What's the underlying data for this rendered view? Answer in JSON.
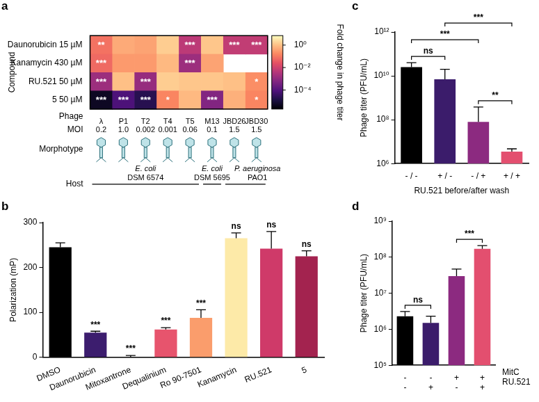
{
  "chart_data": [
    {
      "panel_label": "a",
      "type": "heatmap",
      "x_label": "Phage",
      "y_label": "Compound",
      "categories": [
        "λ",
        "P1",
        "T2",
        "T4",
        "T5",
        "M13",
        "JBD26",
        "JBD30"
      ],
      "rows": [
        "Daunorubicin 15 µM",
        "Kanamycin 430 µM",
        "RU.521 50 µM",
        "5 50 µM"
      ],
      "cells": [
        [
          0.08,
          0.5,
          0.4,
          1.5,
          0.005,
          1.2,
          0.006,
          0.006
        ],
        [
          0.06,
          0.3,
          0.3,
          0.8,
          0.0015,
          0.4,
          null,
          null
        ],
        [
          0.0015,
          1.0,
          0.0012,
          1.5,
          1.2,
          1.2,
          1.0,
          0.2
        ],
        [
          5e-06,
          8e-05,
          2e-05,
          0.15,
          0.8,
          0.0006,
          0.6,
          0.15
        ]
      ],
      "cell_labels": [
        [
          "**",
          null,
          null,
          null,
          "***",
          null,
          "***",
          "***"
        ],
        [
          "***",
          null,
          null,
          null,
          "***",
          null,
          null,
          null
        ],
        [
          "***",
          null,
          "***",
          null,
          null,
          null,
          null,
          "*"
        ],
        [
          "***",
          "***",
          "***",
          "*",
          null,
          "***",
          null,
          "*"
        ]
      ],
      "colorbar": {
        "label": "Fold change in phage titer",
        "log": true,
        "lim": [
          2e-06,
          7
        ],
        "ticks": [
          {
            "value": 1,
            "label": "10⁰"
          },
          {
            "value": 0.01,
            "label": "10⁻²"
          },
          {
            "value": 0.0001,
            "label": "10⁻⁴"
          }
        ]
      },
      "moi": {
        "label": "MOI",
        "values": [
          "0.2",
          "1.0",
          "0.002",
          "0.001",
          "0.06",
          "0.1",
          "1.5",
          "1.5"
        ]
      },
      "morphotype_label": "Morphotype",
      "host": {
        "label": "Host",
        "groups": [
          {
            "name": "E. coli",
            "strain": "DSM 6574",
            "phages": [
              "λ",
              "P1",
              "T2",
              "T4",
              "T5"
            ]
          },
          {
            "name": "E. coli",
            "strain": "DSM 5695",
            "phages": [
              "M13"
            ]
          },
          {
            "name": "P. aeruginosa",
            "strain": "PAO1",
            "phages": [
              "JBD26",
              "JBD30"
            ]
          }
        ]
      }
    },
    {
      "panel_label": "b",
      "type": "bar",
      "categories": [
        "DMSO",
        "Daunorubicin",
        "Mitoxantrone",
        "Dequalinium",
        "Ro 90-7501",
        "Kanamycin",
        "RU.521",
        "5"
      ],
      "values": [
        245,
        55,
        0,
        62,
        88,
        265,
        242,
        225
      ],
      "errors": [
        10,
        3,
        4,
        4,
        18,
        12,
        38,
        12
      ],
      "colors": [
        "#000000",
        "#3c1d6e",
        "#6b1f7b",
        "#e7546d",
        "#fa9d6c",
        "#fdeaa8",
        "#cf3a69",
        "#a3234f"
      ],
      "annotations": [
        null,
        "***",
        "***",
        "***",
        "***",
        "ns",
        "ns",
        "ns"
      ],
      "y_label": "Polarization (mP)",
      "ylim": [
        0,
        300
      ],
      "yticks": [
        0,
        100,
        200,
        300
      ],
      "grid": false
    },
    {
      "panel_label": "c",
      "type": "bar",
      "log": "y",
      "categories": [
        "- / -",
        "+ / -",
        "- / +",
        "+ / +"
      ],
      "values": [
        25000000000,
        7000000000,
        80000000,
        3500000
      ],
      "errors": [
        15000000000,
        13000000000,
        300000000,
        1200000
      ],
      "colors": [
        "#000000",
        "#3b1c6b",
        "#8c2a80",
        "#e34f6f"
      ],
      "x_label": "RU.521 before/after wash",
      "y_label": "Phage titer (PFU/mL)",
      "ylim": [
        1000000,
        1000000000000
      ],
      "yticks": [
        {
          "value": 1000000,
          "label": "10⁶"
        },
        {
          "value": 100000000,
          "label": "10⁸"
        },
        {
          "value": 10000000000,
          "label": "10¹⁰"
        },
        {
          "value": 1000000000000,
          "label": "10¹²"
        }
      ],
      "grid": false,
      "brackets": [
        {
          "from": 0,
          "to": 1,
          "label": "ns"
        },
        {
          "from": 2,
          "to": 3,
          "label": "**"
        },
        {
          "from": 0,
          "to": 2,
          "label": "***"
        },
        {
          "from": 1,
          "to": 3,
          "label": "***"
        }
      ]
    },
    {
      "panel_label": "d",
      "type": "bar",
      "log": "y",
      "x_rows": [
        {
          "name": "MitC",
          "values": [
            "-",
            "-",
            "+",
            "+"
          ]
        },
        {
          "name": "RU.521",
          "values": [
            "-",
            "+",
            "-",
            "+"
          ]
        }
      ],
      "values": [
        2300000,
        1500000,
        30000000,
        170000000
      ],
      "errors": [
        800000,
        800000,
        17000000,
        40000000
      ],
      "colors": [
        "#000000",
        "#3b1c6b",
        "#8c2a80",
        "#e34f6f"
      ],
      "y_label": "Phage titer (PFU/mL)",
      "ylim": [
        100000,
        1000000000
      ],
      "yticks": [
        {
          "value": 100000,
          "label": "10⁵"
        },
        {
          "value": 1000000,
          "label": "10⁶"
        },
        {
          "value": 10000000,
          "label": "10⁷"
        },
        {
          "value": 100000000,
          "label": "10⁸"
        },
        {
          "value": 1000000000,
          "label": "10⁹"
        }
      ],
      "grid": false,
      "brackets": [
        {
          "from": 0,
          "to": 1,
          "label": "ns"
        },
        {
          "from": 2,
          "to": 3,
          "label": "***"
        }
      ]
    }
  ]
}
